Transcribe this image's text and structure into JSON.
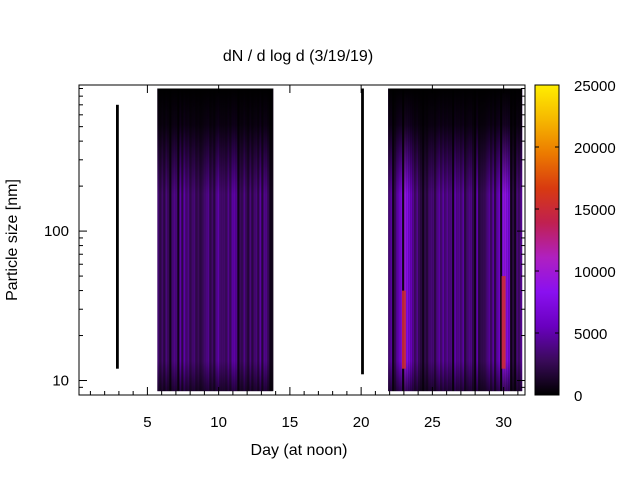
{
  "chart_data": {
    "type": "heatmap",
    "title": "dN / d log d (3/19/19)",
    "xlabel": "Day (at noon)",
    "ylabel": "Particle size [nm]",
    "xlim": [
      0.2,
      31.5
    ],
    "ylim": [
      8,
      950
    ],
    "y_scale": "log",
    "x_ticks": [
      5,
      10,
      15,
      20,
      25,
      30
    ],
    "x_tick_labels": [
      "5",
      "10",
      "15",
      "20",
      "25",
      "30"
    ],
    "y_ticks": [
      10,
      100
    ],
    "y_tick_labels": [
      "10",
      "100"
    ],
    "colorbar": {
      "min": 0,
      "max": 25000,
      "ticks": [
        0,
        5000,
        10000,
        15000,
        20000,
        25000
      ],
      "tick_labels": [
        "0",
        "5000",
        "10000",
        "15000",
        "20000",
        "25000"
      ],
      "colormap": [
        "#000000",
        "#3a0a5a",
        "#6a00c0",
        "#8a10f0",
        "#b020c0",
        "#c02050",
        "#d83a10",
        "#ec7a00",
        "#f6b800",
        "#ffee00"
      ]
    },
    "data_segments": [
      {
        "x_start": 2.8,
        "x_end": 3.0,
        "size_min": 12,
        "size_max": 700,
        "kind": "trace"
      },
      {
        "x_start": 5.7,
        "x_end": 13.8,
        "size_min": 8.5,
        "size_max": 900,
        "kind": "block"
      },
      {
        "x_start": 20.0,
        "x_end": 20.2,
        "size_min": 11,
        "size_max": 900,
        "kind": "trace"
      },
      {
        "x_start": 21.9,
        "x_end": 31.3,
        "size_min": 8.5,
        "size_max": 900,
        "kind": "block"
      }
    ],
    "intensity_peaks": [
      {
        "day": 23.0,
        "size_min": 12,
        "size_max": 40,
        "value": 15000
      },
      {
        "day": 30.0,
        "size_min": 12,
        "size_max": 50,
        "value": 15000
      }
    ]
  }
}
